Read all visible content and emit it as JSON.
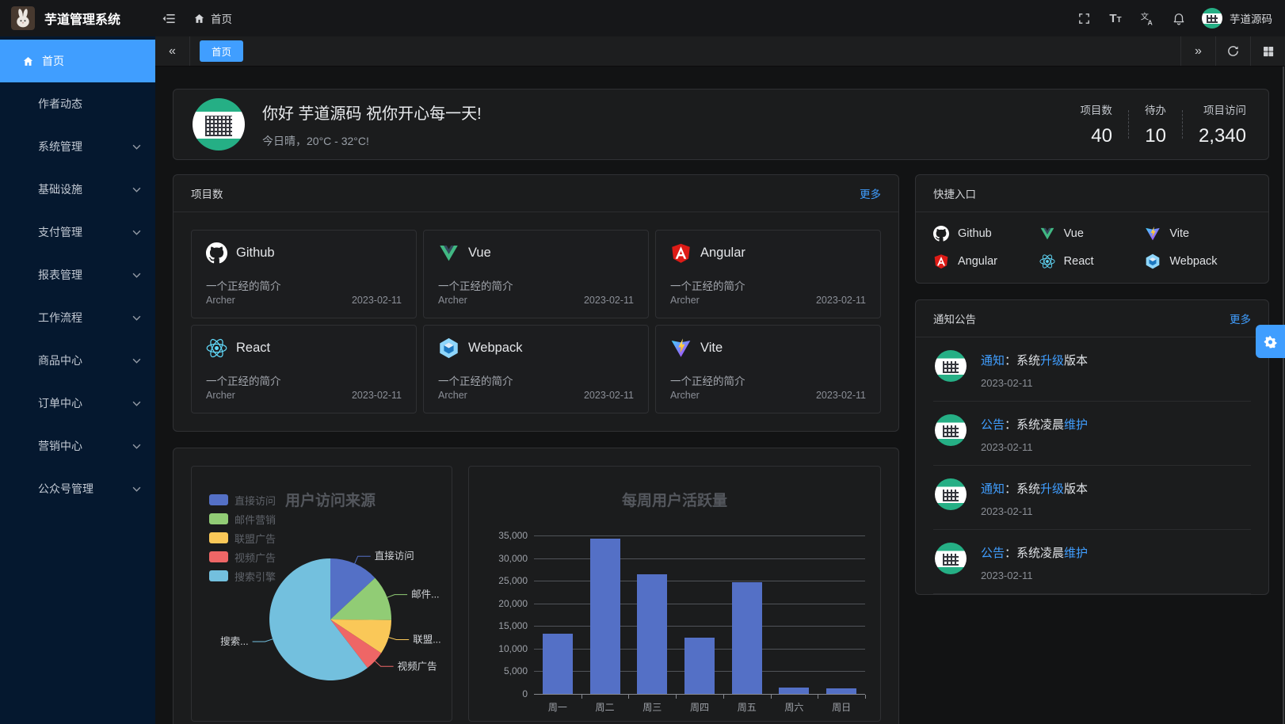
{
  "header": {
    "app_title": "芋道管理系统",
    "breadcrumb_home": "首页",
    "username": "芋道源码"
  },
  "tabbar": {
    "active_tab": "首页"
  },
  "sidebar": {
    "items": [
      {
        "label": "首页",
        "icon": "home",
        "active": true,
        "has_children": false
      },
      {
        "label": "作者动态",
        "active": false,
        "has_children": false
      },
      {
        "label": "系统管理",
        "active": false,
        "has_children": true
      },
      {
        "label": "基础设施",
        "active": false,
        "has_children": true
      },
      {
        "label": "支付管理",
        "active": false,
        "has_children": true
      },
      {
        "label": "报表管理",
        "active": false,
        "has_children": true
      },
      {
        "label": "工作流程",
        "active": false,
        "has_children": true
      },
      {
        "label": "商品中心",
        "active": false,
        "has_children": true
      },
      {
        "label": "订单中心",
        "active": false,
        "has_children": true
      },
      {
        "label": "营销中心",
        "active": false,
        "has_children": true
      },
      {
        "label": "公众号管理",
        "active": false,
        "has_children": true
      }
    ]
  },
  "welcome": {
    "greeting": "你好 芋道源码 祝你开心每一天!",
    "weather": "今日晴，20°C - 32°C!",
    "stats": [
      {
        "label": "项目数",
        "value": "40"
      },
      {
        "label": "待办",
        "value": "10"
      },
      {
        "label": "项目访问",
        "value": "2,340"
      }
    ]
  },
  "projects": {
    "title": "项目数",
    "more_label": "更多",
    "items": [
      {
        "name": "Github",
        "icon": "github",
        "desc": "一个正经的简介",
        "author": "Archer",
        "date": "2023-02-11"
      },
      {
        "name": "Vue",
        "icon": "vue",
        "desc": "一个正经的简介",
        "author": "Archer",
        "date": "2023-02-11"
      },
      {
        "name": "Angular",
        "icon": "angular",
        "desc": "一个正经的简介",
        "author": "Archer",
        "date": "2023-02-11"
      },
      {
        "name": "React",
        "icon": "react",
        "desc": "一个正经的简介",
        "author": "Archer",
        "date": "2023-02-11"
      },
      {
        "name": "Webpack",
        "icon": "webpack",
        "desc": "一个正经的简介",
        "author": "Archer",
        "date": "2023-02-11"
      },
      {
        "name": "Vite",
        "icon": "vite",
        "desc": "一个正经的简介",
        "author": "Archer",
        "date": "2023-02-11"
      }
    ]
  },
  "shortcuts": {
    "title": "快捷入口",
    "items": [
      {
        "label": "Github",
        "icon": "github"
      },
      {
        "label": "Vue",
        "icon": "vue"
      },
      {
        "label": "Vite",
        "icon": "vite"
      },
      {
        "label": "Angular",
        "icon": "angular"
      },
      {
        "label": "React",
        "icon": "react"
      },
      {
        "label": "Webpack",
        "icon": "webpack"
      }
    ]
  },
  "notices": {
    "title": "通知公告",
    "more_label": "更多",
    "items": [
      {
        "tag": "通知",
        "body_pre": "：系统",
        "highlight": "升级",
        "body_post": "版本",
        "date": "2023-02-11"
      },
      {
        "tag": "公告",
        "body_pre": "：系统凌晨",
        "highlight": "维护",
        "body_post": "",
        "date": "2023-02-11"
      },
      {
        "tag": "通知",
        "body_pre": "：系统",
        "highlight": "升级",
        "body_post": "版本",
        "date": "2023-02-11"
      },
      {
        "tag": "公告",
        "body_pre": "：系统凌晨",
        "highlight": "维护",
        "body_post": "",
        "date": "2023-02-11"
      }
    ]
  },
  "colors": {
    "accent": "#409eff",
    "sidebar_bg": "#05182f",
    "panel_bg": "#1b1c1d",
    "bar_color": "#5470c6"
  },
  "chart_data": [
    {
      "type": "pie",
      "title": "用户访问来源",
      "legend": [
        "直接访问",
        "邮件营销",
        "联盟广告",
        "视频广告",
        "搜索引擎"
      ],
      "legend_position": "top-left",
      "categories": [
        "直接访问",
        "邮件营销",
        "联盟广告",
        "视频广告",
        "搜索引擎"
      ],
      "values": [
        335,
        310,
        234,
        135,
        1548
      ],
      "labels_display": [
        "直接访问",
        "邮件...",
        "联盟...",
        "视频广告",
        "搜索..."
      ],
      "colors": [
        "#5470c6",
        "#91cc75",
        "#fac858",
        "#ee6666",
        "#73c0de"
      ]
    },
    {
      "type": "bar",
      "title": "每周用户活跃量",
      "categories": [
        "周一",
        "周二",
        "周三",
        "周四",
        "周五",
        "周六",
        "周日"
      ],
      "values": [
        13300,
        34300,
        26400,
        12400,
        24700,
        1400,
        1300
      ],
      "ylim": [
        0,
        35000
      ],
      "ytick_step": 5000,
      "ytick_labels": [
        "0",
        "5,000",
        "10,000",
        "15,000",
        "20,000",
        "25,000",
        "30,000",
        "35,000"
      ],
      "grid": true,
      "bar_color": "#5470c6"
    }
  ]
}
